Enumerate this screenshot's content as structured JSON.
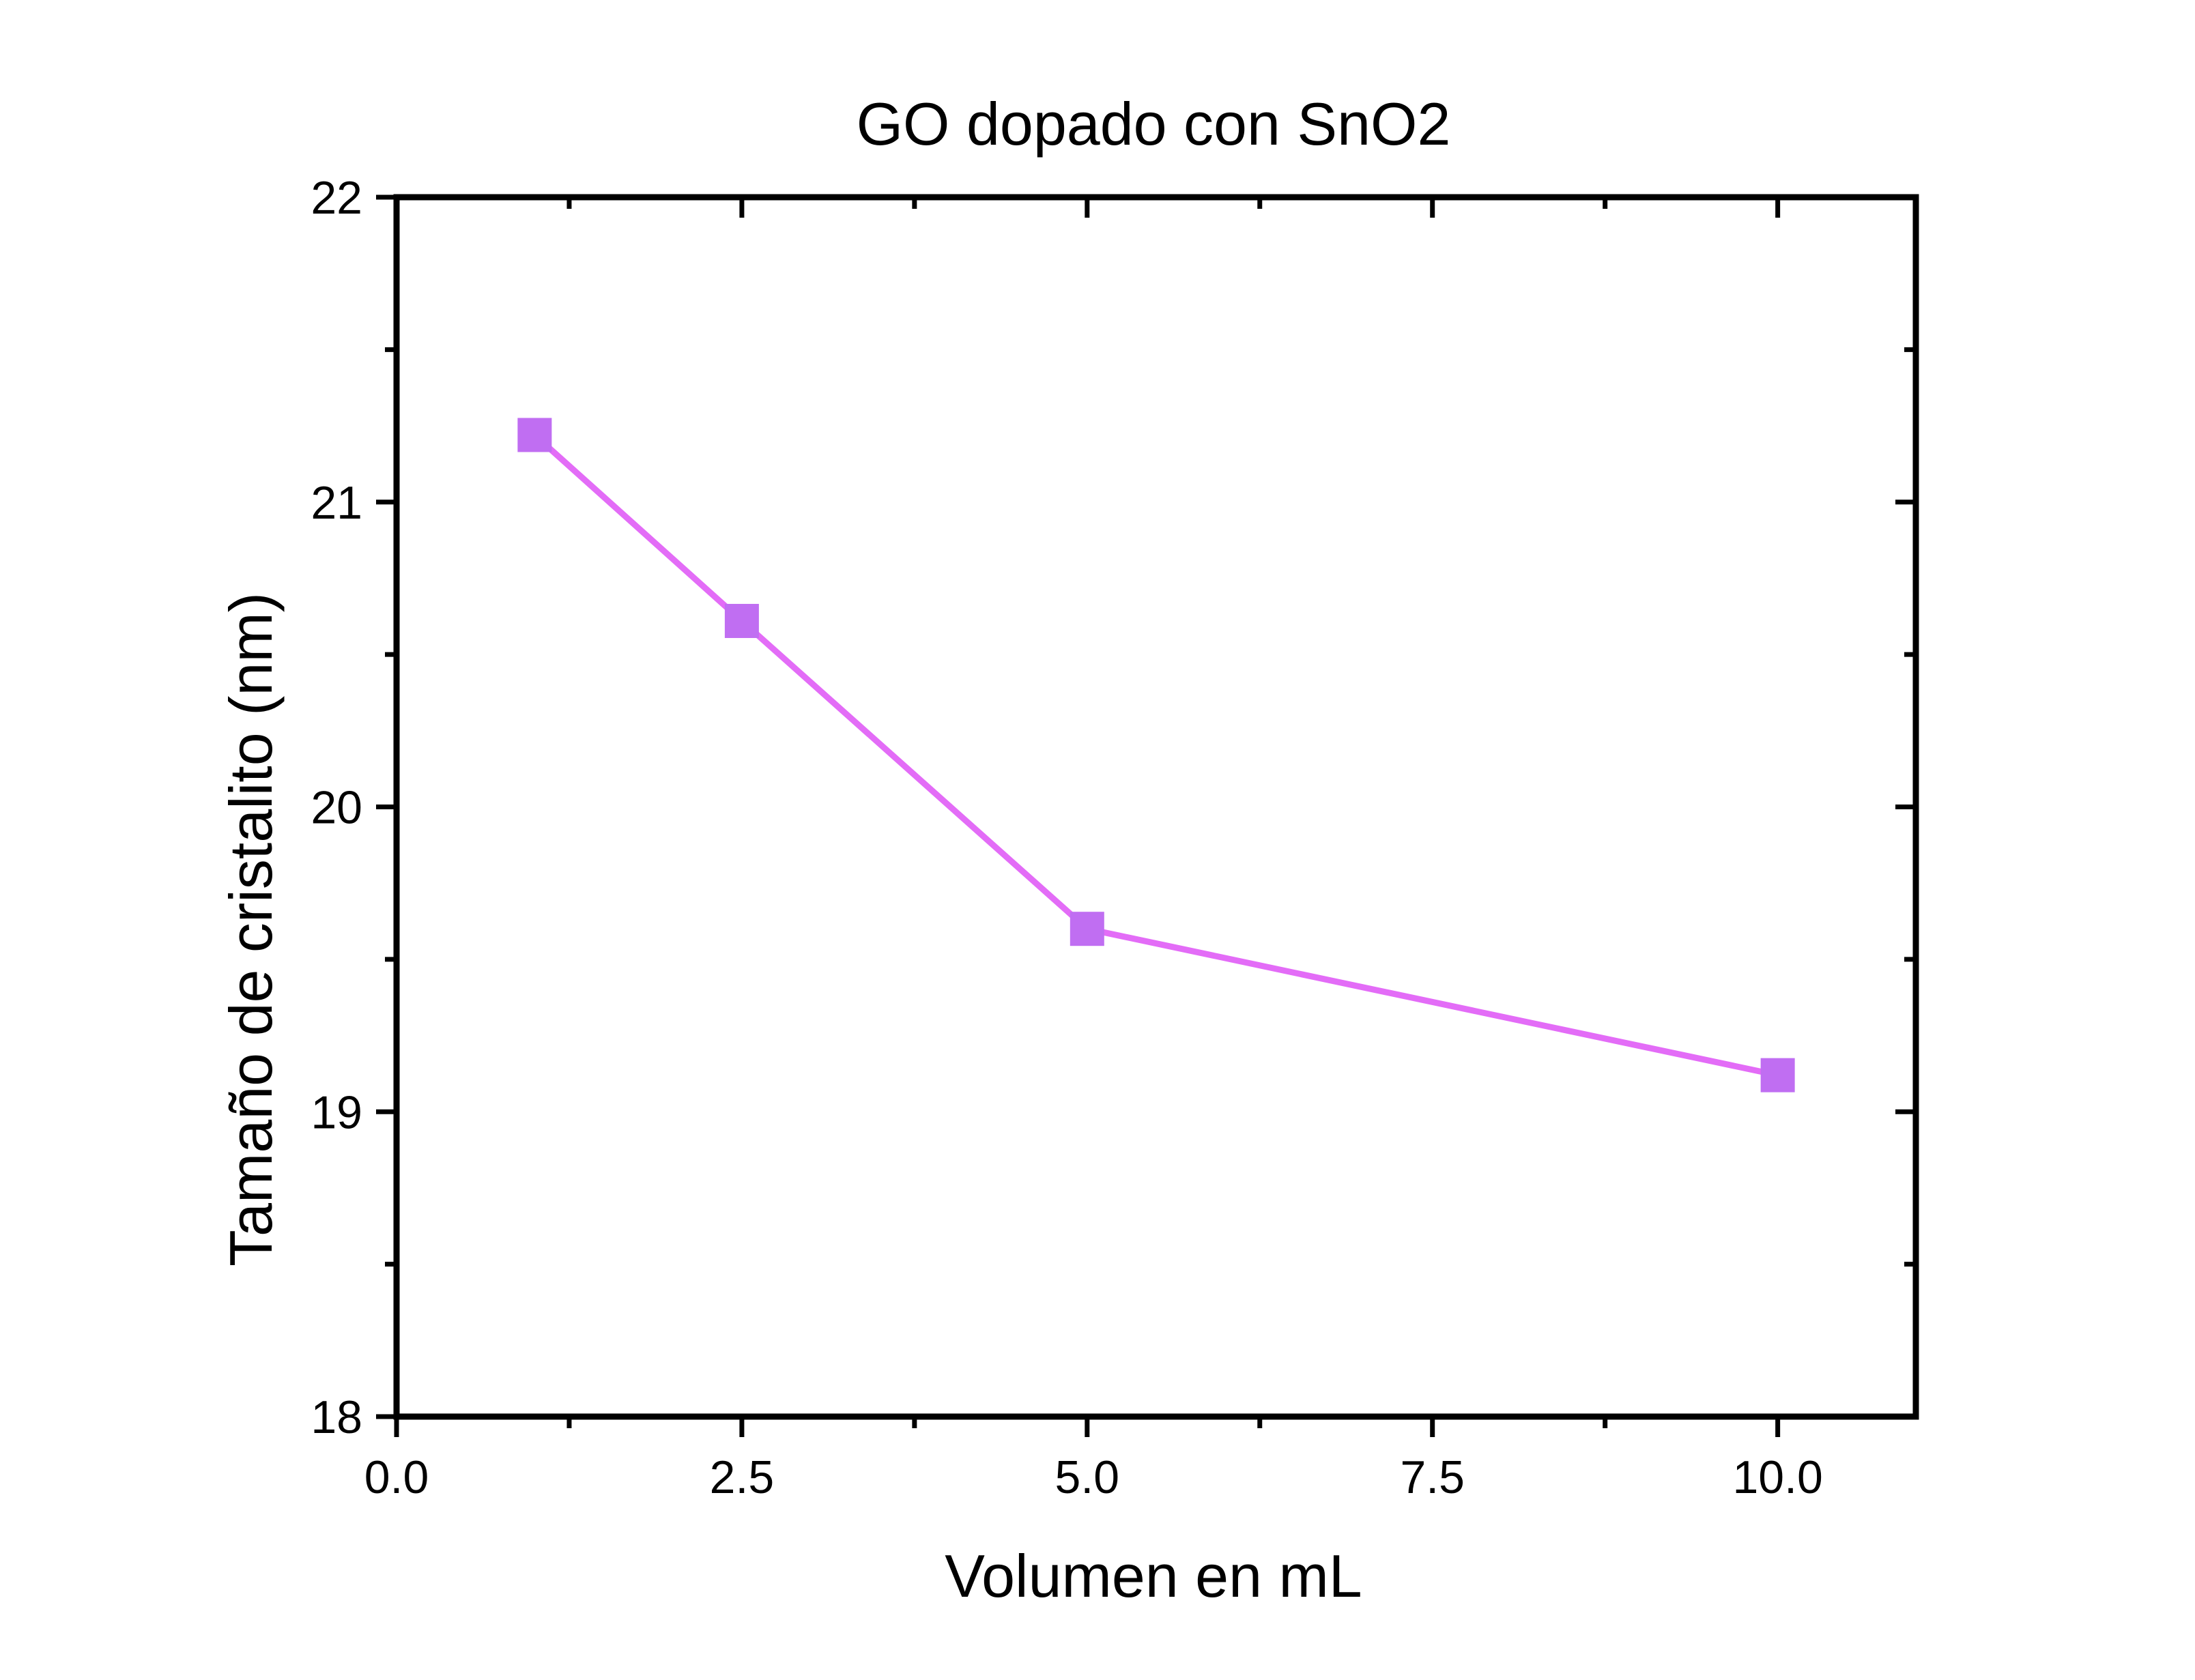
{
  "chart_data": {
    "type": "line",
    "title": "GO dopado con SnO2",
    "xlabel": "Volumen en mL",
    "ylabel": "Tamaño de cristalito (nm)",
    "xlim": [
      0,
      11
    ],
    "ylim": [
      18,
      22
    ],
    "x_ticks": [
      0,
      2.5,
      5,
      7.5,
      10
    ],
    "x_tick_labels": [
      "0.0",
      "2.5",
      "5.0",
      "7.5",
      "10.0"
    ],
    "y_ticks": [
      18,
      19,
      20,
      21,
      22
    ],
    "y_tick_labels": [
      "18",
      "19",
      "20",
      "21",
      "22"
    ],
    "x_minor_ticks": [
      1.25,
      3.75,
      6.25,
      8.75
    ],
    "y_minor_ticks": [
      18.5,
      19.5,
      20.5,
      21.5
    ],
    "grid": false,
    "legend": "none",
    "series": [
      {
        "x": [
          1,
          2.5,
          5,
          10
        ],
        "y": [
          21.22,
          20.61,
          19.6,
          19.12
        ],
        "marker": "square",
        "line_color": "#e36cf7",
        "marker_color": "#c06ef2"
      }
    ]
  }
}
